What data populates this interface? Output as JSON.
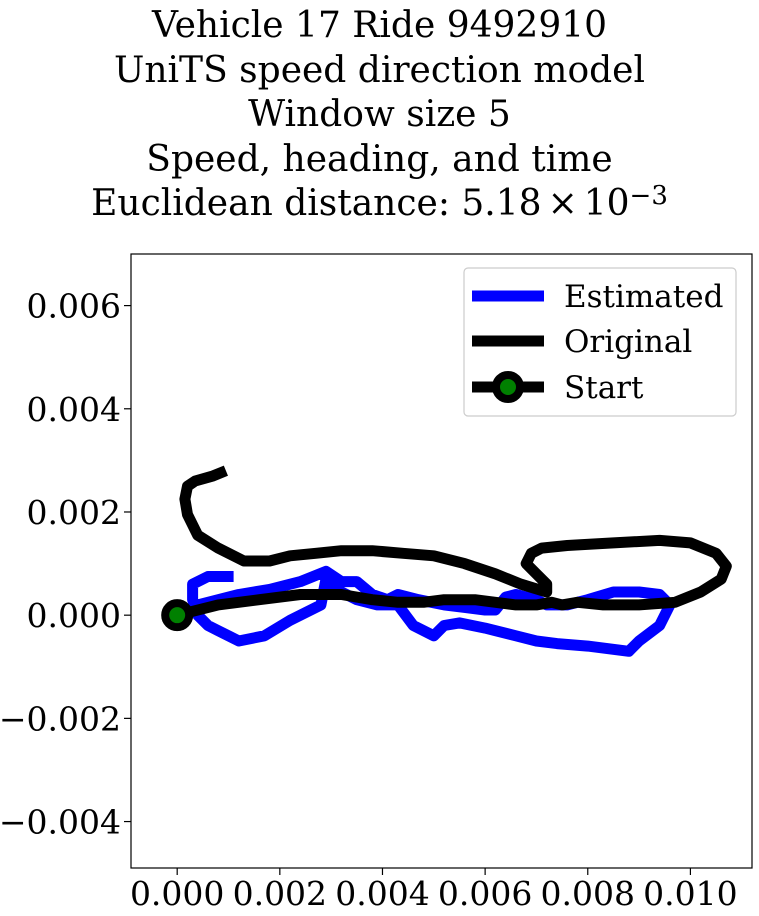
{
  "chart_data": {
    "type": "line",
    "title_lines": [
      "Vehicle 17 Ride 9492910",
      "UniTS speed direction model",
      "Window size 5",
      "Speed, heading, and time",
      "Euclidean distance: "
    ],
    "title_math": {
      "mantissa": "5.18",
      "times": "×",
      "base": "10",
      "exponent": "−3"
    },
    "xlim": [
      -0.0009,
      0.0112
    ],
    "ylim": [
      -0.0049,
      0.007
    ],
    "xticks": [
      0.0,
      0.002,
      0.004,
      0.006,
      0.008,
      0.01
    ],
    "xtick_labels": [
      "0.000",
      "0.002",
      "0.004",
      "0.006",
      "0.008",
      "0.010"
    ],
    "yticks": [
      -0.004,
      -0.002,
      0.0,
      0.002,
      0.004,
      0.006
    ],
    "ytick_labels": [
      "−0.004",
      "−0.002",
      "0.000",
      "0.002",
      "0.004",
      "0.006"
    ],
    "grid": false,
    "legend": {
      "placement": "top-right"
    },
    "series": [
      {
        "name": "Estimated",
        "color": "#0000ff",
        "x": [
          0.0,
          0.0004,
          0.0008,
          0.0012,
          0.0018,
          0.0024,
          0.0029,
          0.0032,
          0.0035,
          0.0038,
          0.0041,
          0.0043,
          0.0047,
          0.0052,
          0.0056,
          0.006,
          0.0062,
          0.0064,
          0.0066,
          0.0068,
          0.007,
          0.0072,
          0.0076,
          0.008,
          0.0085,
          0.009,
          0.0094,
          0.0096,
          0.0094,
          0.009,
          0.0088,
          0.0084,
          0.008,
          0.0074,
          0.007,
          0.0066,
          0.006,
          0.0055,
          0.0052,
          0.005,
          0.0046,
          0.0043,
          0.0039,
          0.0035,
          0.0031,
          0.0029,
          0.0028,
          0.0022,
          0.0017,
          0.0012,
          0.001,
          0.0008,
          0.0006,
          0.0004,
          0.0003,
          0.0003,
          0.0006,
          0.0008,
          0.0011
        ],
        "y": [
          0.0,
          0.0002,
          0.0003,
          0.0004,
          0.0005,
          0.00065,
          0.00085,
          0.00065,
          0.00065,
          0.0004,
          0.0003,
          0.0004,
          0.0003,
          0.0002,
          0.00015,
          0.0001,
          0.0001,
          0.00035,
          0.0004,
          0.00035,
          0.0003,
          0.0002,
          0.0002,
          0.0003,
          0.00045,
          0.00045,
          0.0004,
          0.0002,
          -0.0002,
          -0.0005,
          -0.0007,
          -0.00065,
          -0.0006,
          -0.00055,
          -0.0005,
          -0.0004,
          -0.00025,
          -0.00015,
          -0.0002,
          -0.0004,
          -0.0002,
          0.0002,
          0.0002,
          0.0003,
          0.0005,
          0.0007,
          0.0002,
          -0.0001,
          -0.0004,
          -0.0005,
          -0.0004,
          -0.0003,
          -0.0002,
          0.0,
          0.0003,
          0.0006,
          0.00075,
          0.00075,
          0.00075
        ]
      },
      {
        "name": "Original",
        "color": "#000000",
        "x": [
          0.0,
          0.0008,
          0.0016,
          0.0024,
          0.0032,
          0.0038,
          0.0043,
          0.0048,
          0.0052,
          0.0058,
          0.0062,
          0.0066,
          0.007,
          0.0073,
          0.0075,
          0.0078,
          0.0083,
          0.009,
          0.0097,
          0.0102,
          0.0106,
          0.0107,
          0.0105,
          0.01,
          0.0094,
          0.0085,
          0.0076,
          0.0071,
          0.0069,
          0.0068,
          0.007,
          0.0072,
          0.0072,
          0.0067,
          0.0062,
          0.0056,
          0.005,
          0.0044,
          0.0038,
          0.0032,
          0.0027,
          0.0022,
          0.0018,
          0.0013,
          0.0008,
          0.0004,
          0.0002,
          0.00015,
          0.0002,
          0.00035,
          0.0007,
          0.00095
        ],
        "y": [
          0.0,
          0.0002,
          0.0003,
          0.0004,
          0.0004,
          0.0003,
          0.00025,
          0.00025,
          0.0003,
          0.0003,
          0.00025,
          0.0002,
          0.0002,
          0.00025,
          0.0002,
          0.00025,
          0.0002,
          0.0002,
          0.00025,
          0.00045,
          0.0007,
          0.00095,
          0.0012,
          0.0014,
          0.00145,
          0.0014,
          0.00135,
          0.0013,
          0.0012,
          0.001,
          0.0008,
          0.0006,
          0.00045,
          0.0006,
          0.0008,
          0.001,
          0.00115,
          0.0012,
          0.00125,
          0.00125,
          0.0012,
          0.00115,
          0.00105,
          0.00105,
          0.0013,
          0.00155,
          0.00195,
          0.00225,
          0.0025,
          0.0026,
          0.0027,
          0.0028
        ]
      }
    ],
    "start_marker": {
      "name": "Start",
      "x": 0.0,
      "y": 0.0,
      "edge_color": "#000000",
      "face_color": "#008000"
    }
  }
}
